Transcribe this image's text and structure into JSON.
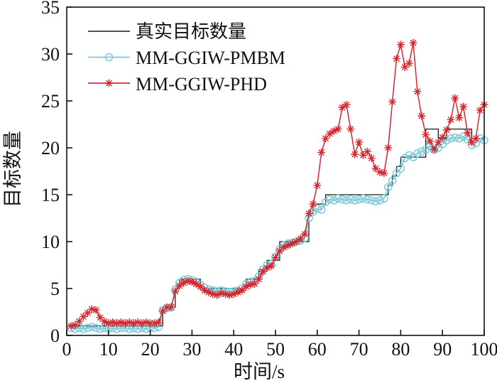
{
  "chart_data": {
    "type": "line",
    "title": "",
    "xlabel": "时间/s",
    "ylabel": "目标数量",
    "xlim": [
      0,
      100
    ],
    "ylim": [
      0,
      35
    ],
    "xticks": [
      0,
      10,
      20,
      30,
      40,
      50,
      60,
      70,
      80,
      90,
      100
    ],
    "yticks": [
      0,
      5,
      10,
      15,
      20,
      25,
      30,
      35
    ],
    "grid": false,
    "legend_position": "top-left",
    "frame_color": "#111111",
    "x": [
      1,
      2,
      3,
      4,
      5,
      6,
      7,
      8,
      9,
      10,
      11,
      12,
      13,
      14,
      15,
      16,
      17,
      18,
      19,
      20,
      21,
      22,
      23,
      24,
      25,
      26,
      27,
      28,
      29,
      30,
      31,
      32,
      33,
      34,
      35,
      36,
      37,
      38,
      39,
      40,
      41,
      42,
      43,
      44,
      45,
      46,
      47,
      48,
      49,
      50,
      51,
      52,
      53,
      54,
      55,
      56,
      57,
      58,
      59,
      60,
      61,
      62,
      63,
      64,
      65,
      66,
      67,
      68,
      69,
      70,
      71,
      72,
      73,
      74,
      75,
      76,
      77,
      78,
      79,
      80,
      81,
      82,
      83,
      84,
      85,
      86,
      87,
      88,
      89,
      90,
      91,
      92,
      93,
      94,
      95,
      96,
      97,
      98,
      99,
      100
    ],
    "series": [
      {
        "name": "真实目标数量",
        "color": "#1a1a1a",
        "marker": "none",
        "style": "step",
        "values": [
          1,
          1,
          1,
          1,
          1,
          1,
          1,
          1,
          1,
          1,
          1,
          1,
          1,
          1,
          1,
          1,
          1,
          1,
          1,
          1,
          1,
          1,
          3,
          3,
          3,
          5,
          6,
          6,
          6,
          6,
          6,
          5,
          5,
          5,
          5,
          5,
          5,
          5,
          5,
          5,
          5,
          5,
          6,
          6,
          6,
          7,
          7,
          8,
          8,
          8,
          10,
          10,
          10,
          10,
          10,
          10,
          10,
          13,
          14,
          14,
          14,
          15,
          15,
          15,
          15,
          15,
          15,
          15,
          15,
          15,
          15,
          15,
          15,
          15,
          15,
          15,
          16,
          17,
          18,
          19,
          19,
          19,
          19,
          19,
          19,
          22,
          22,
          22,
          21,
          21,
          22,
          22,
          22,
          22,
          22,
          22,
          21,
          21,
          21,
          21
        ]
      },
      {
        "name": "MM-GGIW-PMBM",
        "color": "#7ec9d8",
        "marker": "circle",
        "style": "line",
        "values": [
          0.8,
          0.7,
          0.8,
          0.7,
          0.8,
          0.9,
          0.8,
          0.7,
          0.8,
          0.7,
          0.8,
          0.7,
          0.8,
          0.8,
          0.7,
          0.8,
          0.7,
          0.8,
          0.7,
          0.8,
          0.8,
          0.9,
          2.7,
          2.9,
          3.0,
          4.9,
          5.6,
          5.9,
          6.0,
          5.9,
          5.7,
          5.4,
          5.1,
          4.9,
          4.8,
          4.7,
          4.8,
          4.7,
          4.6,
          4.7,
          4.8,
          5.0,
          5.5,
          5.7,
          5.8,
          6.3,
          7.0,
          7.5,
          7.6,
          8.4,
          9.2,
          9.6,
          9.8,
          9.9,
          10.0,
          10.1,
          10.4,
          12.5,
          13.2,
          13.5,
          13.4,
          14.2,
          14.5,
          14.4,
          14.6,
          14.5,
          14.4,
          14.5,
          14.4,
          14.5,
          14.6,
          14.5,
          14.4,
          14.3,
          14.4,
          14.6,
          15.8,
          16.5,
          17.3,
          17.8,
          18.9,
          19.2,
          19.0,
          19.4,
          19.6,
          19.8,
          20.2,
          19.8,
          20.0,
          20.4,
          20.8,
          21.0,
          21.1,
          21.0,
          21.2,
          20.9,
          20.3,
          20.5,
          21.0,
          20.8
        ]
      },
      {
        "name": "MM-GGIW-PHD",
        "color": "#d8262f",
        "marker": "asterisk",
        "style": "line",
        "values": [
          1.0,
          1.1,
          1.5,
          2.0,
          2.4,
          2.8,
          2.7,
          1.9,
          1.5,
          1.3,
          1.4,
          1.3,
          1.4,
          1.3,
          1.4,
          1.3,
          1.4,
          1.3,
          1.4,
          1.3,
          1.3,
          1.4,
          2.6,
          3.0,
          3.0,
          4.7,
          5.3,
          5.6,
          5.8,
          5.7,
          5.5,
          5.2,
          4.8,
          4.6,
          4.4,
          4.3,
          4.5,
          4.4,
          4.3,
          4.4,
          4.6,
          4.8,
          5.2,
          5.4,
          5.5,
          6.0,
          6.8,
          7.2,
          7.4,
          8.3,
          9.0,
          9.4,
          9.6,
          9.8,
          10.0,
          10.3,
          10.8,
          13.0,
          14.0,
          16.0,
          19.5,
          21.0,
          21.5,
          21.8,
          22.0,
          24.3,
          24.6,
          22.0,
          19.3,
          20.6,
          19.2,
          19.6,
          18.9,
          17.8,
          17.4,
          17.3,
          20.0,
          24.9,
          29.5,
          31.0,
          28.6,
          29.0,
          31.2,
          26.0,
          23.4,
          21.4,
          20.7,
          19.8,
          20.6,
          21.1,
          21.9,
          23.0,
          25.3,
          23.2,
          24.4,
          21.6,
          20.6,
          21.0,
          24.0,
          24.6
        ]
      }
    ]
  }
}
